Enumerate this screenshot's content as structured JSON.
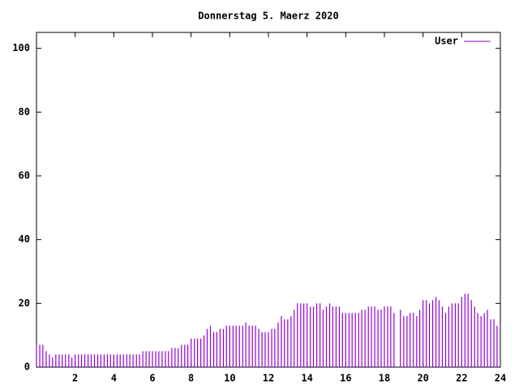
{
  "chart_data": {
    "type": "impulses",
    "title": "Donnerstag 5. Maerz 2020",
    "x": [
      0,
      0.17,
      0.33,
      0.5,
      0.67,
      0.83,
      1,
      1.17,
      1.33,
      1.5,
      1.67,
      1.83,
      2,
      2.17,
      2.33,
      2.5,
      2.67,
      2.83,
      3,
      3.17,
      3.33,
      3.5,
      3.67,
      3.83,
      4,
      4.17,
      4.33,
      4.5,
      4.67,
      4.83,
      5,
      5.17,
      5.33,
      5.5,
      5.67,
      5.83,
      6,
      6.17,
      6.33,
      6.5,
      6.67,
      6.83,
      7,
      7.17,
      7.33,
      7.5,
      7.67,
      7.83,
      8,
      8.17,
      8.33,
      8.5,
      8.67,
      8.83,
      9,
      9.17,
      9.33,
      9.5,
      9.67,
      9.83,
      10,
      10.17,
      10.33,
      10.5,
      10.67,
      10.83,
      11,
      11.17,
      11.33,
      11.5,
      11.67,
      11.83,
      12,
      12.17,
      12.33,
      12.5,
      12.67,
      12.83,
      13,
      13.17,
      13.33,
      13.5,
      13.67,
      13.83,
      14,
      14.17,
      14.33,
      14.5,
      14.67,
      14.83,
      15,
      15.17,
      15.33,
      15.5,
      15.67,
      15.83,
      16,
      16.17,
      16.33,
      16.5,
      16.67,
      16.83,
      17,
      17.17,
      17.33,
      17.5,
      17.67,
      17.83,
      18,
      18.17,
      18.33,
      18.5,
      18.67,
      18.83,
      19,
      19.17,
      19.33,
      19.5,
      19.67,
      19.83,
      20,
      20.17,
      20.33,
      20.5,
      20.67,
      20.83,
      21,
      21.17,
      21.33,
      21.5,
      21.67,
      21.83,
      22,
      22.17,
      22.33,
      22.5,
      22.67,
      22.83,
      23,
      23.17,
      23.33,
      23.5,
      23.67,
      23.83
    ],
    "series": [
      {
        "name": "User",
        "color": "#9400d3",
        "values": [
          7,
          7,
          7,
          5,
          4,
          3,
          4,
          4,
          4,
          4,
          4,
          3,
          4,
          4,
          4,
          4,
          4,
          4,
          4,
          4,
          4,
          4,
          4,
          4,
          4,
          4,
          4,
          4,
          4,
          4,
          4,
          4,
          4,
          5,
          5,
          5,
          5,
          5,
          5,
          5,
          5,
          5,
          6,
          6,
          6,
          7,
          7,
          7,
          9,
          9,
          9,
          9,
          10,
          12,
          13,
          11,
          11,
          12,
          12,
          13,
          13,
          13,
          13,
          13,
          13,
          14,
          13,
          13,
          13,
          12,
          11,
          11,
          11,
          12,
          12,
          14,
          16,
          15,
          15,
          16,
          18,
          20,
          20,
          20,
          20,
          19,
          19,
          20,
          20,
          18,
          19,
          20,
          19,
          19,
          19,
          17,
          17,
          17,
          17,
          17,
          17,
          18,
          18,
          19,
          19,
          19,
          18,
          18,
          19,
          19,
          19,
          17,
          null,
          18,
          16,
          16,
          17,
          17,
          16,
          18,
          21,
          21,
          20,
          21,
          22,
          21,
          19,
          17,
          19,
          20,
          20,
          20,
          22,
          23,
          23,
          21,
          19,
          17,
          16,
          17,
          18,
          15,
          15,
          13
        ]
      }
    ],
    "xlim": [
      0,
      24
    ],
    "xticks": [
      2,
      4,
      6,
      8,
      10,
      12,
      14,
      16,
      18,
      20,
      22,
      24
    ],
    "ylim": [
      0,
      105
    ],
    "yticks": [
      0,
      20,
      40,
      60,
      80,
      100
    ],
    "legend": "upper-right"
  }
}
